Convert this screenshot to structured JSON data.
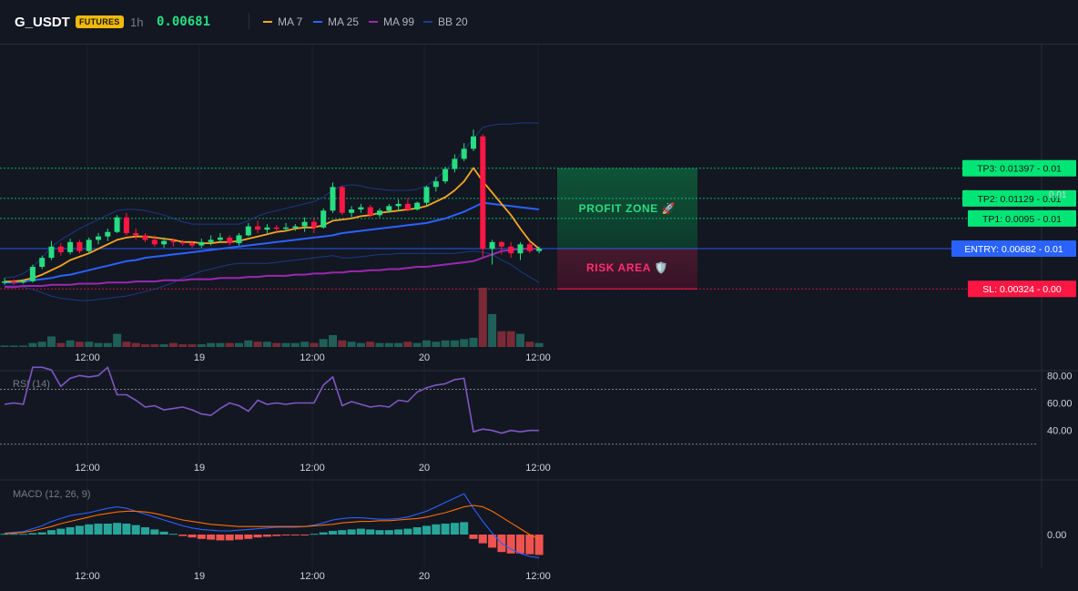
{
  "header": {
    "symbol": "G_USDT",
    "badge": "FUTURES",
    "timeframe": "1h",
    "price": "0.00681",
    "indicators": [
      {
        "label": "MA 7",
        "color": "#f5a623"
      },
      {
        "label": "MA 25",
        "color": "#2962ff"
      },
      {
        "label": "MA 99",
        "color": "#9c27b0"
      },
      {
        "label": "BB 20",
        "color": "#1e3a8a"
      }
    ]
  },
  "colors": {
    "background": "#131722",
    "up": "#26de81",
    "down": "#ff1744",
    "volume_up": "#1f5f58",
    "volume_down": "#7a2a36",
    "entry": "#2962ff",
    "target": "#00e676",
    "stop": "#ff1744"
  },
  "chart_data": [
    {
      "type": "candlestick",
      "panel": "price",
      "y_range_approx": [
        0.0015,
        0.0185
      ],
      "x_tick_labels": [
        "12:00",
        "19",
        "12:00",
        "20",
        "12:00"
      ],
      "candles": [
        {
          "o": 0.00385,
          "h": 0.0042,
          "l": 0.0036,
          "c": 0.0039
        },
        {
          "o": 0.0039,
          "h": 0.0041,
          "l": 0.0036,
          "c": 0.00385
        },
        {
          "o": 0.00385,
          "h": 0.0041,
          "l": 0.0037,
          "c": 0.00392
        },
        {
          "o": 0.00392,
          "h": 0.0054,
          "l": 0.0038,
          "c": 0.0052
        },
        {
          "o": 0.0052,
          "h": 0.0062,
          "l": 0.005,
          "c": 0.006
        },
        {
          "o": 0.006,
          "h": 0.0075,
          "l": 0.0058,
          "c": 0.007
        },
        {
          "o": 0.007,
          "h": 0.0073,
          "l": 0.0062,
          "c": 0.0065
        },
        {
          "o": 0.0065,
          "h": 0.0077,
          "l": 0.0063,
          "c": 0.0074
        },
        {
          "o": 0.0074,
          "h": 0.0076,
          "l": 0.0064,
          "c": 0.0066
        },
        {
          "o": 0.0066,
          "h": 0.0078,
          "l": 0.0064,
          "c": 0.0076
        },
        {
          "o": 0.0076,
          "h": 0.0082,
          "l": 0.0072,
          "c": 0.0079
        },
        {
          "o": 0.0079,
          "h": 0.0086,
          "l": 0.0075,
          "c": 0.0083
        },
        {
          "o": 0.0083,
          "h": 0.0098,
          "l": 0.0082,
          "c": 0.0096
        },
        {
          "o": 0.0096,
          "h": 0.01,
          "l": 0.008,
          "c": 0.0082
        },
        {
          "o": 0.0082,
          "h": 0.0086,
          "l": 0.0076,
          "c": 0.008
        },
        {
          "o": 0.008,
          "h": 0.0082,
          "l": 0.0074,
          "c": 0.0076
        },
        {
          "o": 0.0076,
          "h": 0.008,
          "l": 0.007,
          "c": 0.0072
        },
        {
          "o": 0.0072,
          "h": 0.0078,
          "l": 0.0069,
          "c": 0.0075
        },
        {
          "o": 0.0075,
          "h": 0.0077,
          "l": 0.007,
          "c": 0.0074
        },
        {
          "o": 0.0074,
          "h": 0.0076,
          "l": 0.0071,
          "c": 0.0073
        },
        {
          "o": 0.0073,
          "h": 0.0075,
          "l": 0.0069,
          "c": 0.0071
        },
        {
          "o": 0.0071,
          "h": 0.0077,
          "l": 0.0069,
          "c": 0.0074
        },
        {
          "o": 0.0074,
          "h": 0.008,
          "l": 0.0071,
          "c": 0.0076
        },
        {
          "o": 0.0076,
          "h": 0.0082,
          "l": 0.0074,
          "c": 0.0078
        },
        {
          "o": 0.0078,
          "h": 0.008,
          "l": 0.0071,
          "c": 0.0073
        },
        {
          "o": 0.0073,
          "h": 0.0082,
          "l": 0.0071,
          "c": 0.008
        },
        {
          "o": 0.008,
          "h": 0.0091,
          "l": 0.0079,
          "c": 0.0088
        },
        {
          "o": 0.0088,
          "h": 0.0093,
          "l": 0.0082,
          "c": 0.0085
        },
        {
          "o": 0.0085,
          "h": 0.009,
          "l": 0.0082,
          "c": 0.0087
        },
        {
          "o": 0.0087,
          "h": 0.0089,
          "l": 0.0083,
          "c": 0.0086
        },
        {
          "o": 0.0086,
          "h": 0.0091,
          "l": 0.0084,
          "c": 0.0087
        },
        {
          "o": 0.0087,
          "h": 0.009,
          "l": 0.0084,
          "c": 0.0088
        },
        {
          "o": 0.0088,
          "h": 0.0096,
          "l": 0.0083,
          "c": 0.0092
        },
        {
          "o": 0.0092,
          "h": 0.0096,
          "l": 0.0082,
          "c": 0.0087
        },
        {
          "o": 0.0087,
          "h": 0.0104,
          "l": 0.0086,
          "c": 0.0102
        },
        {
          "o": 0.0102,
          "h": 0.0127,
          "l": 0.01,
          "c": 0.0123
        },
        {
          "o": 0.0123,
          "h": 0.0124,
          "l": 0.0098,
          "c": 0.01
        },
        {
          "o": 0.01,
          "h": 0.0106,
          "l": 0.0096,
          "c": 0.0103
        },
        {
          "o": 0.0103,
          "h": 0.0108,
          "l": 0.01,
          "c": 0.0105
        },
        {
          "o": 0.0105,
          "h": 0.0107,
          "l": 0.0096,
          "c": 0.0098
        },
        {
          "o": 0.0098,
          "h": 0.0104,
          "l": 0.0096,
          "c": 0.0102
        },
        {
          "o": 0.0102,
          "h": 0.0108,
          "l": 0.01,
          "c": 0.0106
        },
        {
          "o": 0.0106,
          "h": 0.0112,
          "l": 0.0102,
          "c": 0.0108
        },
        {
          "o": 0.0108,
          "h": 0.0113,
          "l": 0.0101,
          "c": 0.0103
        },
        {
          "o": 0.0103,
          "h": 0.011,
          "l": 0.0102,
          "c": 0.0109
        },
        {
          "o": 0.0109,
          "h": 0.0124,
          "l": 0.0107,
          "c": 0.0123
        },
        {
          "o": 0.0123,
          "h": 0.0132,
          "l": 0.0119,
          "c": 0.0128
        },
        {
          "o": 0.0128,
          "h": 0.0141,
          "l": 0.0126,
          "c": 0.0139
        },
        {
          "o": 0.0139,
          "h": 0.0152,
          "l": 0.0136,
          "c": 0.0148
        },
        {
          "o": 0.0148,
          "h": 0.0162,
          "l": 0.0146,
          "c": 0.0157
        },
        {
          "o": 0.0157,
          "h": 0.0174,
          "l": 0.0155,
          "c": 0.0168
        },
        {
          "o": 0.0168,
          "h": 0.017,
          "l": 0.0061,
          "c": 0.0068
        },
        {
          "o": 0.0068,
          "h": 0.0076,
          "l": 0.0054,
          "c": 0.0074
        },
        {
          "o": 0.0074,
          "h": 0.0075,
          "l": 0.0063,
          "c": 0.007
        },
        {
          "o": 0.007,
          "h": 0.0074,
          "l": 0.006,
          "c": 0.0064
        },
        {
          "o": 0.0064,
          "h": 0.0074,
          "l": 0.0058,
          "c": 0.0072
        },
        {
          "o": 0.0072,
          "h": 0.0075,
          "l": 0.0064,
          "c": 0.0066
        },
        {
          "o": 0.0066,
          "h": 0.007,
          "l": 0.0064,
          "c": 0.00681
        }
      ],
      "volume": [
        1,
        1,
        1,
        3,
        4,
        8,
        3,
        5,
        4,
        4,
        3,
        3,
        10,
        4,
        3,
        2,
        2,
        2,
        3,
        2,
        2,
        2,
        3,
        3,
        3,
        3,
        5,
        4,
        4,
        3,
        3,
        3,
        4,
        3,
        6,
        9,
        5,
        4,
        3,
        4,
        3,
        3,
        3,
        4,
        3,
        5,
        4,
        5,
        5,
        6,
        7,
        45,
        25,
        12,
        12,
        10,
        4,
        3
      ],
      "volume_up": [
        true,
        true,
        true,
        true,
        true,
        true,
        false,
        true,
        false,
        true,
        true,
        true,
        true,
        false,
        false,
        false,
        false,
        true,
        false,
        false,
        false,
        true,
        true,
        true,
        false,
        true,
        true,
        false,
        true,
        false,
        true,
        true,
        true,
        false,
        true,
        true,
        false,
        true,
        true,
        false,
        true,
        true,
        true,
        false,
        true,
        true,
        true,
        true,
        true,
        true,
        true,
        false,
        true,
        false,
        false,
        true,
        false,
        true
      ],
      "ma7": [
        0.0039,
        0.0039,
        0.004,
        0.0042,
        0.0045,
        0.0049,
        0.0053,
        0.0058,
        0.0061,
        0.0064,
        0.0068,
        0.0072,
        0.0076,
        0.0078,
        0.0079,
        0.0079,
        0.0078,
        0.0077,
        0.0076,
        0.0074,
        0.0074,
        0.0073,
        0.0073,
        0.0074,
        0.0074,
        0.0075,
        0.0077,
        0.0079,
        0.0081,
        0.0083,
        0.0084,
        0.0086,
        0.0087,
        0.0087,
        0.0089,
        0.0093,
        0.0094,
        0.0095,
        0.0097,
        0.0098,
        0.01,
        0.0101,
        0.0102,
        0.0103,
        0.0104,
        0.0106,
        0.011,
        0.0114,
        0.012,
        0.0128,
        0.014,
        0.0128,
        0.0118,
        0.0108,
        0.0098,
        0.0086,
        0.0075,
        0.0068
      ],
      "ma25": [
        0.0038,
        0.0038,
        0.0039,
        0.004,
        0.0041,
        0.0042,
        0.0044,
        0.0045,
        0.0047,
        0.0049,
        0.0051,
        0.0053,
        0.0055,
        0.0057,
        0.0058,
        0.006,
        0.0061,
        0.0062,
        0.0063,
        0.0064,
        0.0065,
        0.0066,
        0.0067,
        0.0068,
        0.0069,
        0.007,
        0.0071,
        0.0072,
        0.0073,
        0.0074,
        0.0075,
        0.0076,
        0.0077,
        0.0078,
        0.0079,
        0.008,
        0.0082,
        0.0083,
        0.0084,
        0.0085,
        0.0086,
        0.0087,
        0.0088,
        0.0089,
        0.009,
        0.0091,
        0.0093,
        0.0095,
        0.0098,
        0.0101,
        0.0105,
        0.0109,
        0.0108,
        0.0107,
        0.0106,
        0.0105,
        0.0104,
        0.0103
      ],
      "ma99": [
        0.0034,
        0.0034,
        0.0035,
        0.0035,
        0.0035,
        0.0036,
        0.0036,
        0.0036,
        0.0037,
        0.0037,
        0.0037,
        0.0038,
        0.0038,
        0.0038,
        0.0039,
        0.0039,
        0.0039,
        0.004,
        0.004,
        0.004,
        0.0041,
        0.0041,
        0.0041,
        0.0042,
        0.0042,
        0.0042,
        0.0043,
        0.0043,
        0.0044,
        0.0044,
        0.0044,
        0.0045,
        0.0045,
        0.0046,
        0.0046,
        0.0047,
        0.0047,
        0.0048,
        0.0048,
        0.0049,
        0.0049,
        0.005,
        0.005,
        0.0051,
        0.0052,
        0.0052,
        0.0053,
        0.0054,
        0.0055,
        0.0056,
        0.0057,
        0.006,
        0.0063,
        0.0066,
        0.0067,
        0.0068,
        0.0068,
        0.0068
      ],
      "bb_upper": [
        0.0042,
        0.0043,
        0.0046,
        0.0052,
        0.006,
        0.007,
        0.0076,
        0.0081,
        0.0086,
        0.009,
        0.0094,
        0.0098,
        0.0102,
        0.0103,
        0.0103,
        0.0102,
        0.01,
        0.0098,
        0.0095,
        0.0092,
        0.009,
        0.009,
        0.009,
        0.009,
        0.009,
        0.009,
        0.0093,
        0.0097,
        0.01,
        0.0102,
        0.0104,
        0.0106,
        0.0108,
        0.011,
        0.0114,
        0.012,
        0.0124,
        0.0125,
        0.0124,
        0.0122,
        0.0121,
        0.012,
        0.012,
        0.012,
        0.0121,
        0.0124,
        0.013,
        0.0138,
        0.0146,
        0.0156,
        0.0166,
        0.0176,
        0.0178,
        0.0179,
        0.0179,
        0.018,
        0.018,
        0.018
      ],
      "bb_lower": [
        0.0035,
        0.0035,
        0.0034,
        0.0032,
        0.0029,
        0.0026,
        0.0024,
        0.0023,
        0.0022,
        0.0022,
        0.0023,
        0.0024,
        0.0025,
        0.0026,
        0.0028,
        0.003,
        0.0032,
        0.0035,
        0.0038,
        0.0042,
        0.0045,
        0.0048,
        0.005,
        0.0052,
        0.0054,
        0.0055,
        0.0055,
        0.0055,
        0.0055,
        0.0056,
        0.0057,
        0.0058,
        0.0059,
        0.006,
        0.0061,
        0.0062,
        0.006,
        0.006,
        0.0061,
        0.0062,
        0.0063,
        0.0063,
        0.0064,
        0.0064,
        0.0064,
        0.0064,
        0.0064,
        0.0064,
        0.0064,
        0.0065,
        0.0066,
        0.0065,
        0.0063,
        0.0058,
        0.0054,
        0.0048,
        0.0043,
        0.0038
      ],
      "levels": [
        {
          "name": "TP3",
          "label": "TP3: 0.01397 - 0.01",
          "value": 0.01397,
          "kind": "target"
        },
        {
          "name": "TP2",
          "label": "TP2: 0.01129 - 0.01",
          "value": 0.01129,
          "kind": "target"
        },
        {
          "name": "TP1",
          "label": "TP1: 0.0095 - 0.01",
          "value": 0.0095,
          "kind": "target"
        },
        {
          "name": "ENTRY",
          "label": "ENTRY: 0.00682 - 0.01",
          "value": 0.00682,
          "kind": "entry"
        },
        {
          "name": "SL",
          "label": "SL: 0.00324 - 0.00",
          "value": 0.00324,
          "kind": "stop"
        }
      ],
      "zones": {
        "profit_label": "PROFIT ZONE 🚀",
        "risk_label": "RISK AREA 🛡️"
      },
      "axis_stray_label": "0.01"
    },
    {
      "type": "line",
      "panel": "rsi",
      "title": "RSI (14)",
      "y_tick_labels": [
        "80.00",
        "60.00",
        "40.00"
      ],
      "y_ticks": [
        80,
        60,
        40
      ],
      "levels": [
        70,
        30
      ],
      "x_tick_labels": [
        "12:00",
        "19",
        "12:00",
        "20",
        "12:00"
      ],
      "values": [
        59,
        60,
        59,
        86,
        86,
        84,
        72,
        78,
        80,
        79,
        80,
        86,
        66,
        66,
        62,
        57,
        58,
        55,
        56,
        57,
        55,
        52,
        51,
        56,
        60,
        58,
        54,
        62,
        59,
        60,
        59,
        60,
        60,
        60,
        73,
        79,
        58,
        61,
        59,
        57,
        58,
        57,
        62,
        61,
        68,
        71,
        73,
        74,
        77,
        78,
        39,
        41,
        40,
        38,
        40,
        39,
        40,
        40
      ],
      "ylim": [
        25,
        92
      ]
    },
    {
      "type": "histogram+line",
      "panel": "macd",
      "title": "MACD (12, 26, 9)",
      "y_tick_labels": [
        "0.00"
      ],
      "x_tick_labels": [
        "12:00",
        "19",
        "12:00",
        "20",
        "12:00"
      ],
      "histogram": [
        0.1,
        0.1,
        0.1,
        0.2,
        0.3,
        0.6,
        0.8,
        1.0,
        1.2,
        1.4,
        1.5,
        1.5,
        1.6,
        1.5,
        1.3,
        1.0,
        0.7,
        0.4,
        0.1,
        -0.2,
        -0.4,
        -0.6,
        -0.7,
        -0.8,
        -0.8,
        -0.7,
        -0.6,
        -0.4,
        -0.3,
        -0.2,
        -0.1,
        -0.1,
        -0.1,
        0.1,
        0.3,
        0.5,
        0.6,
        0.7,
        0.8,
        0.7,
        0.6,
        0.6,
        0.7,
        0.8,
        1.0,
        1.2,
        1.4,
        1.5,
        1.6,
        1.7,
        -0.6,
        -1.2,
        -1.8,
        -2.4,
        -2.6,
        -2.6,
        -2.7,
        -2.8
      ],
      "macd_line": [
        0.2,
        0.3,
        0.4,
        0.8,
        1.2,
        1.8,
        2.2,
        2.6,
        2.8,
        3.0,
        3.3,
        3.6,
        3.8,
        3.6,
        3.2,
        2.8,
        2.4,
        2.0,
        1.6,
        1.2,
        0.9,
        0.7,
        0.6,
        0.5,
        0.5,
        0.6,
        0.7,
        0.8,
        0.9,
        1.0,
        1.0,
        1.0,
        1.1,
        1.3,
        1.6,
        2.0,
        2.2,
        2.3,
        2.3,
        2.2,
        2.1,
        2.1,
        2.2,
        2.4,
        2.8,
        3.2,
        3.8,
        4.4,
        5.0,
        5.6,
        3.6,
        1.8,
        0.2,
        -1.2,
        -2.0,
        -2.6,
        -3.0,
        -3.2
      ],
      "signal_line": [
        0.1,
        0.2,
        0.3,
        0.5,
        0.8,
        1.1,
        1.5,
        1.8,
        2.1,
        2.4,
        2.7,
        2.9,
        3.1,
        3.2,
        3.2,
        3.1,
        2.9,
        2.6,
        2.3,
        2.0,
        1.8,
        1.6,
        1.4,
        1.3,
        1.2,
        1.1,
        1.1,
        1.1,
        1.1,
        1.1,
        1.1,
        1.1,
        1.1,
        1.2,
        1.3,
        1.4,
        1.6,
        1.7,
        1.8,
        1.8,
        1.9,
        1.9,
        2.0,
        2.1,
        2.2,
        2.4,
        2.7,
        3.0,
        3.4,
        3.8,
        4.0,
        3.8,
        3.2,
        2.4,
        1.6,
        0.8,
        0.0,
        -0.6
      ],
      "ylim": [
        -6,
        6
      ]
    }
  ]
}
